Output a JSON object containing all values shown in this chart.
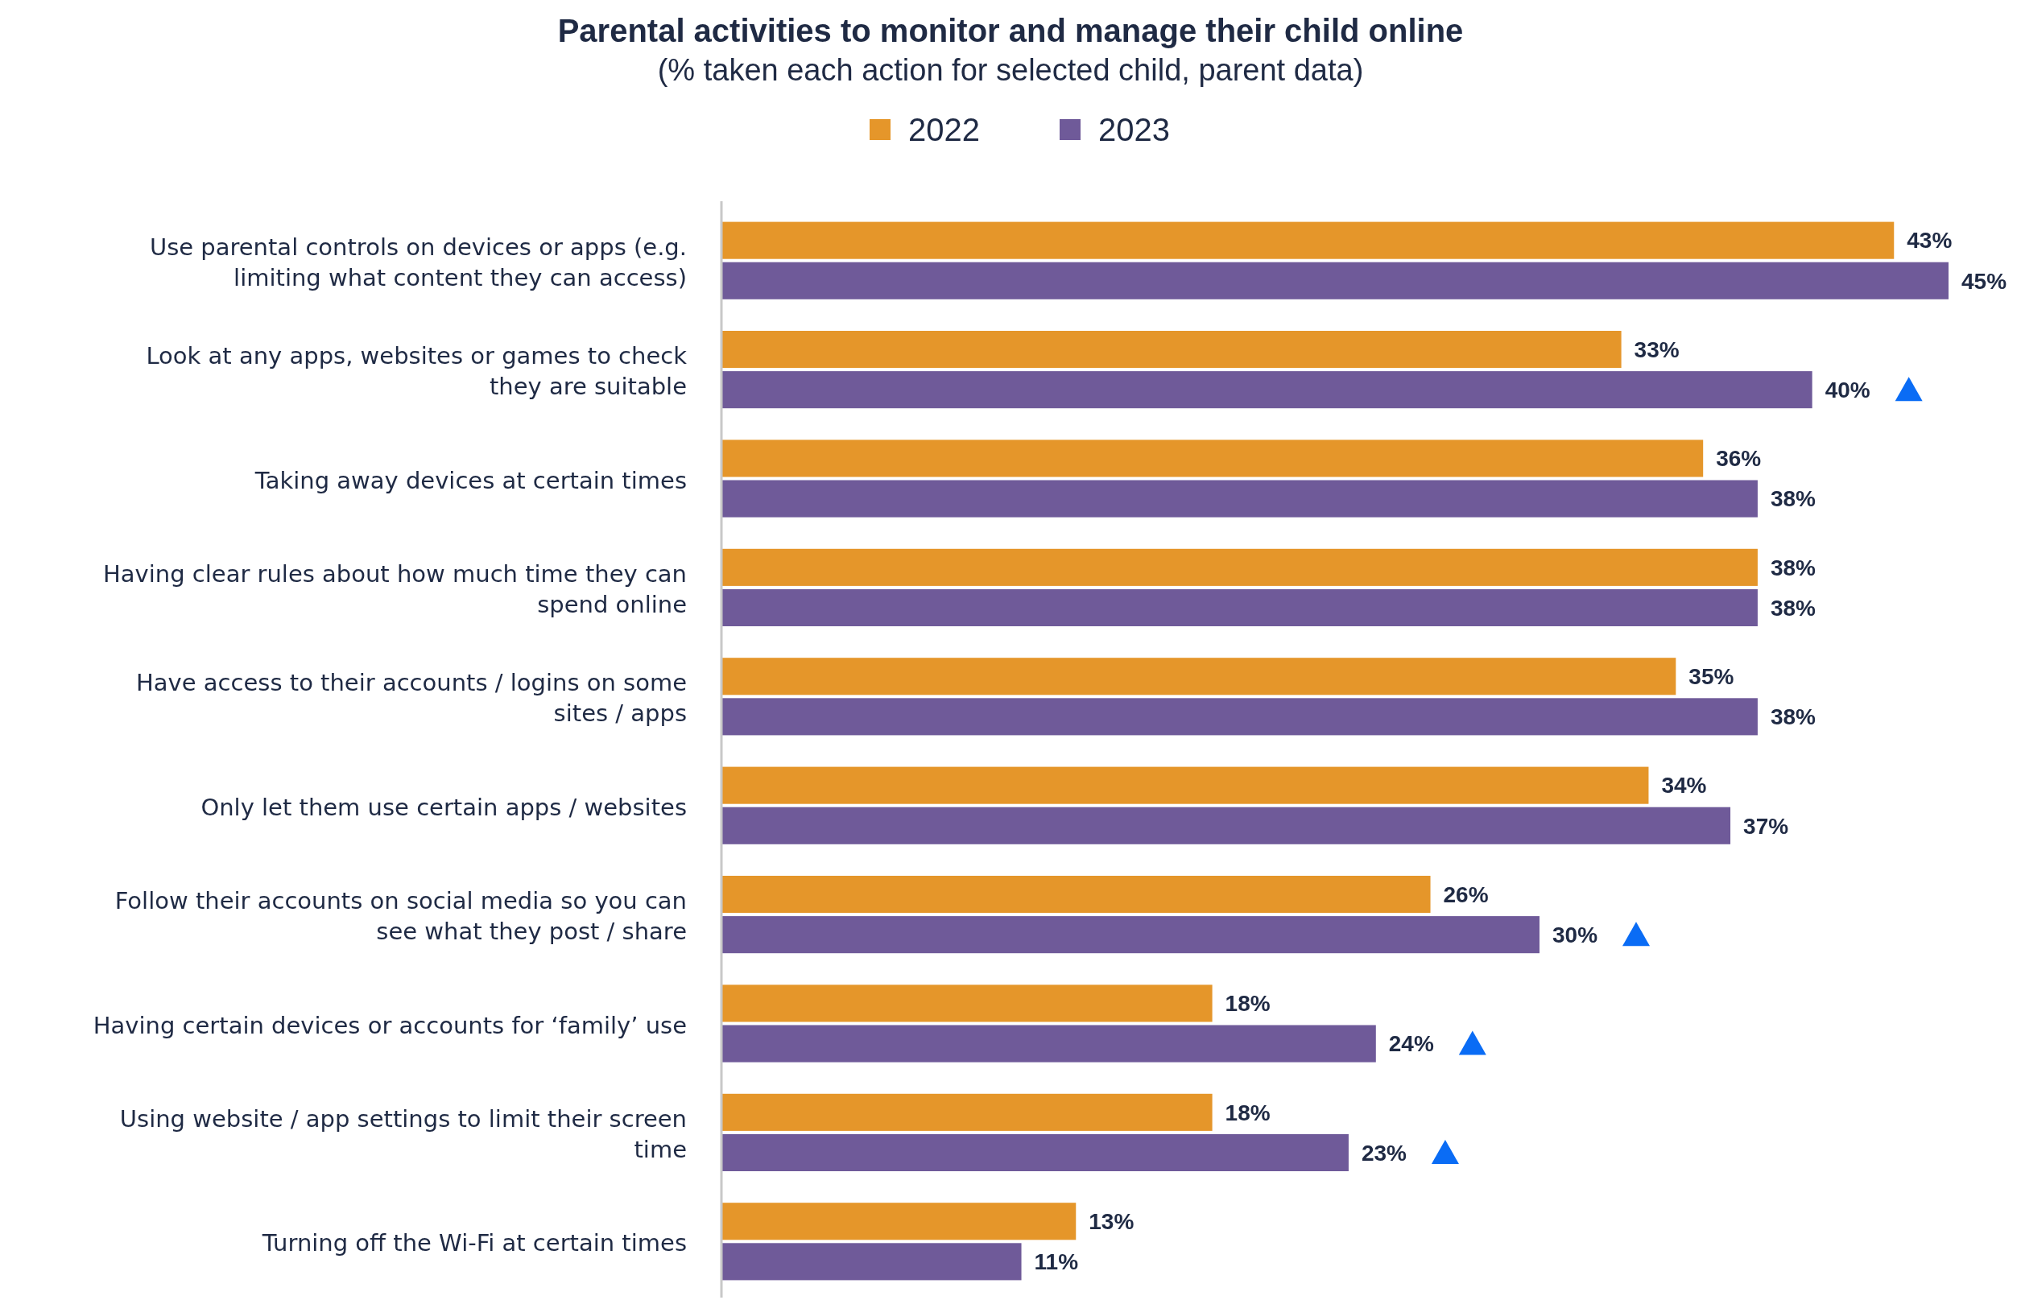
{
  "chart_data": {
    "type": "bar",
    "orientation": "horizontal",
    "title": "Parental activities to monitor and manage their child online",
    "subtitle": "(% taken each action for selected child, parent data)",
    "categories": [
      "Use parental controls on devices or apps (e.g. limiting what content they can access)",
      "Look at any apps, websites or games to check they are suitable",
      "Taking away devices at certain times",
      "Having clear rules about how much time they can spend online",
      "Have access to their accounts / logins on some sites / apps",
      "Only let them use certain apps / websites",
      "Follow their accounts on social media so you can see what they post / share",
      "Having certain devices or accounts for ‘family’ use",
      "Using website / app settings to limit their screen time",
      "Turning off the Wi-Fi at certain times"
    ],
    "series": [
      {
        "name": "2022",
        "color": "#e5962a",
        "values": [
          43,
          33,
          36,
          38,
          35,
          34,
          26,
          18,
          18,
          13
        ],
        "value_labels": [
          "43%",
          "33%",
          "36%",
          "38%",
          "35%",
          "34%",
          "26%",
          "18%",
          "18%",
          "13%"
        ]
      },
      {
        "name": "2023",
        "color": "#6f5a99",
        "values": [
          45,
          40,
          38,
          38,
          38,
          37,
          30,
          24,
          23,
          11
        ],
        "value_labels": [
          "45%",
          "40%",
          "38%",
          "38%",
          "38%",
          "37%",
          "30%",
          "24%",
          "23%",
          "11%"
        ]
      }
    ],
    "xlim": [
      0,
      45
    ],
    "tick_labels": "y",
    "legend": "top"
  }
}
